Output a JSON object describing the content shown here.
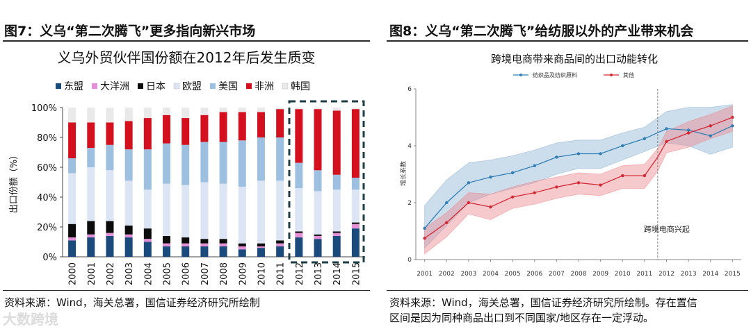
{
  "figures": {
    "left_title": "图7：义乌“第二次腾飞”更多指向新兴市场",
    "right_title": "图8：义乌“第二次腾飞”给纺服以外的产业带来机会",
    "left_source": "资料来源：Wind，海关总署，国信证券经济研究所绘制",
    "right_source_line1": "资料来源：Wind，海关总署，国信证券经济研究所绘制。存在置信",
    "right_source_line2": "区间是因为同种商品出口到不同国家/地区存在一定浮动。",
    "watermark": "大数跨境"
  },
  "chart_data": [
    {
      "type": "bar",
      "stacked": true,
      "title": "义乌外贸伙伴国份额在2012年后发生质变",
      "ylabel": "出口份额（%）",
      "ylim": [
        0,
        100
      ],
      "yticks": [
        "0%",
        "20%",
        "40%",
        "60%",
        "80%",
        "100%"
      ],
      "categories": [
        "2000",
        "2001",
        "2002",
        "2003",
        "2004",
        "2005",
        "2006",
        "2007",
        "2008",
        "2009",
        "2010",
        "2011",
        "2012",
        "2013",
        "2014",
        "2015"
      ],
      "highlight": "2012–2015",
      "series": [
        {
          "name": "东盟",
          "color": "#1b4a7c",
          "values": [
            11,
            13,
            14,
            13,
            10,
            7,
            7,
            7,
            7,
            5,
            6,
            7,
            13,
            12,
            14,
            19
          ]
        },
        {
          "name": "大洋洲",
          "color": "#e58fd6",
          "values": [
            2,
            2,
            2,
            2,
            2,
            2,
            2,
            2,
            2,
            2,
            1,
            2,
            3,
            2,
            2,
            3
          ]
        },
        {
          "name": "日本",
          "color": "#0c0c0c",
          "values": [
            9,
            9,
            8,
            6,
            7,
            5,
            4,
            3,
            3,
            2,
            2,
            2,
            1,
            1,
            1,
            1
          ]
        },
        {
          "name": "欧盟",
          "color": "#dbe5f3",
          "values": [
            34,
            36,
            34,
            30,
            26,
            35,
            35,
            38,
            37,
            38,
            42,
            40,
            29,
            29,
            28,
            22
          ]
        },
        {
          "name": "美国",
          "color": "#9dbfe0",
          "values": [
            10,
            13,
            17,
            21,
            27,
            27,
            27,
            27,
            28,
            31,
            29,
            29,
            17,
            14,
            10,
            8
          ]
        },
        {
          "name": "非洲",
          "color": "#d4101e",
          "values": [
            24,
            17,
            15,
            19,
            21,
            19,
            18,
            18,
            20,
            19,
            17,
            19,
            36,
            41,
            43,
            46
          ]
        },
        {
          "name": "韩国",
          "color": "#e9e9e9",
          "values": [
            10,
            10,
            10,
            9,
            7,
            5,
            7,
            5,
            3,
            3,
            3,
            1,
            1,
            1,
            2,
            1
          ]
        }
      ]
    },
    {
      "type": "line",
      "title": "跨境电商带来商品间的出口动能转化",
      "ylabel": "增长系数",
      "ylim": [
        0,
        6
      ],
      "yticks": [
        0,
        2,
        4,
        6
      ],
      "x": [
        2001,
        2002,
        2003,
        2004,
        2005,
        2006,
        2007,
        2008,
        2009,
        2010,
        2011,
        2012,
        2013,
        2014,
        2015
      ],
      "annotation": {
        "label": "跨境电商兴起",
        "x": 2011.6
      },
      "series": [
        {
          "name": "纺织品及纺织原料",
          "color": "#2f7fb6",
          "band_color": "#8fb3d3",
          "x": [
            2001,
            2002,
            2003,
            2004,
            2005,
            2006,
            2007,
            2008,
            2009,
            2010,
            2011,
            2012,
            2013,
            2014,
            2015
          ],
          "values": [
            1.1,
            2.0,
            2.7,
            2.9,
            3.05,
            3.3,
            3.6,
            3.72,
            3.72,
            4.0,
            4.25,
            4.6,
            4.55,
            4.35,
            4.7
          ],
          "upper": [
            1.9,
            2.8,
            3.4,
            3.5,
            3.65,
            3.85,
            4.1,
            4.2,
            4.2,
            4.45,
            4.65,
            5.2,
            5.35,
            5.35,
            5.45
          ],
          "lower": [
            0.4,
            1.2,
            2.0,
            2.3,
            2.5,
            2.7,
            3.0,
            3.2,
            3.2,
            3.5,
            3.8,
            4.1,
            4.0,
            3.7,
            3.95
          ]
        },
        {
          "name": "其他",
          "color": "#d42a35",
          "band_color": "#ec8a90",
          "x": [
            2001,
            2002,
            2003,
            2004,
            2005,
            2006,
            2007,
            2008,
            2009,
            2010,
            2011,
            2011.6,
            2012,
            2013,
            2014,
            2015
          ],
          "values": [
            0.75,
            1.3,
            2.0,
            1.85,
            2.2,
            2.35,
            2.55,
            2.7,
            2.62,
            2.95,
            2.95,
            3.6,
            4.15,
            4.45,
            4.7,
            5.0
          ],
          "upper": [
            1.1,
            1.65,
            2.35,
            2.3,
            2.55,
            2.75,
            2.9,
            3.05,
            3.0,
            3.3,
            3.35,
            3.9,
            4.5,
            4.85,
            5.1,
            5.4
          ],
          "lower": [
            0.2,
            0.8,
            1.6,
            1.4,
            1.8,
            1.95,
            2.15,
            2.3,
            2.25,
            2.5,
            2.5,
            3.1,
            3.75,
            3.95,
            4.25,
            4.5
          ]
        }
      ]
    }
  ]
}
